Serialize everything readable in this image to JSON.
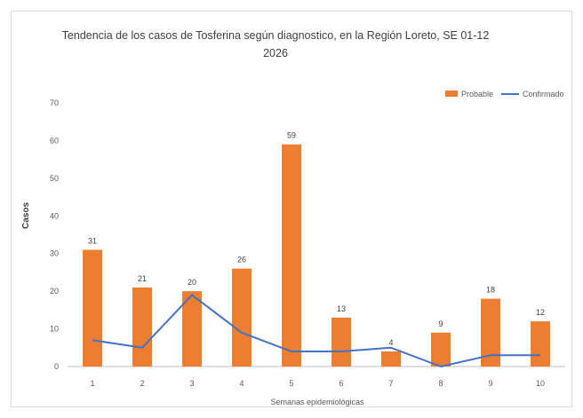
{
  "chart_data": {
    "type": "bar",
    "title": "Tendencia de los casos de Tosferina según diagnostico, en la Región Loreto, SE 01-12 2026",
    "xlabel": "Semanas epidemiológicas",
    "ylabel": "Casos",
    "categories": [
      "1",
      "2",
      "3",
      "4",
      "5",
      "6",
      "7",
      "8",
      "9",
      "10"
    ],
    "ylim": [
      0,
      70
    ],
    "yticks": [
      0,
      10,
      20,
      30,
      40,
      50,
      60,
      70
    ],
    "legend_position": "top-right",
    "grid": false,
    "series": [
      {
        "name": "Probable",
        "type": "bar",
        "color": "#ED7D31",
        "values": [
          31,
          21,
          20,
          26,
          59,
          13,
          4,
          9,
          18,
          12
        ]
      },
      {
        "name": "Confirmado",
        "type": "line",
        "color": "#4472C4",
        "values": [
          7,
          5,
          19,
          9,
          4,
          4,
          5,
          0,
          3,
          3
        ]
      }
    ]
  }
}
